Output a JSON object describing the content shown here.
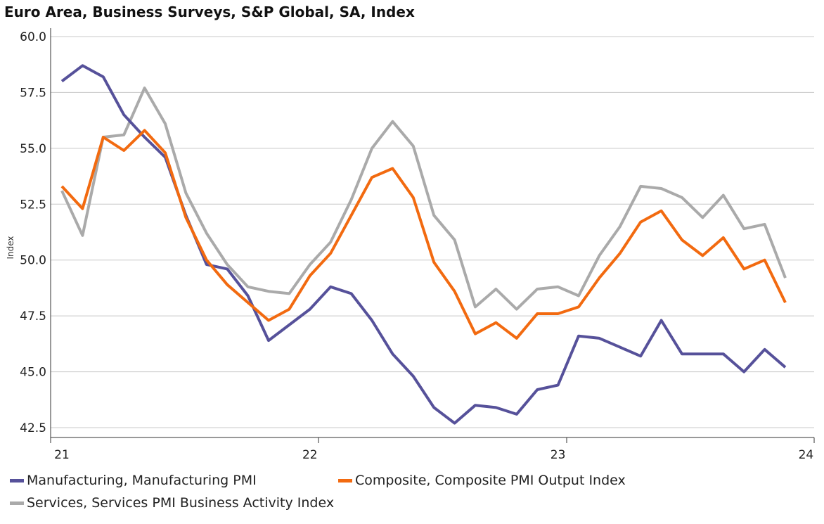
{
  "chart_data": {
    "type": "line",
    "title": "Euro Area, Business Surveys, S&P Global, SA, Index",
    "xlabel": "",
    "ylabel": "Index",
    "ylim": [
      42.0,
      60.5
    ],
    "yticks": [
      "60.0",
      "57.5",
      "55.0",
      "52.5",
      "50.0",
      "47.5",
      "45.0",
      "42.5"
    ],
    "ytick_values": [
      60.0,
      57.5,
      55.0,
      52.5,
      50.0,
      47.5,
      45.0,
      42.5
    ],
    "x_start": "2021-01",
    "x_tick_labels": [
      "21",
      "22",
      "23",
      "24"
    ],
    "x_tick_indices": [
      0,
      12,
      24,
      36
    ],
    "n_points": 36,
    "grid": true,
    "legend_position": "bottom",
    "series": [
      {
        "name": "Manufacturing, Manufacturing PMI",
        "color": "#56519a",
        "values": [
          58.0,
          58.7,
          58.2,
          56.5,
          55.5,
          54.6,
          52.0,
          49.8,
          49.6,
          48.4,
          46.4,
          47.1,
          47.8,
          48.8,
          48.5,
          47.3,
          45.8,
          44.8,
          43.4,
          42.7,
          43.5,
          43.4,
          43.1,
          44.2,
          44.4,
          46.6,
          46.5,
          46.1,
          45.7,
          47.3,
          45.8,
          45.8,
          45.8,
          45.0,
          46.0,
          45.2
        ]
      },
      {
        "name": "Composite, Composite PMI Output Index",
        "color": "#f26a10",
        "values": [
          53.3,
          52.3,
          55.5,
          54.9,
          55.8,
          54.8,
          51.9,
          50.0,
          48.9,
          48.1,
          47.3,
          47.8,
          49.3,
          50.3,
          52.0,
          53.7,
          54.1,
          52.8,
          49.9,
          48.6,
          46.7,
          47.2,
          46.5,
          47.6,
          47.6,
          47.9,
          49.2,
          50.3,
          51.7,
          52.2,
          50.9,
          50.2,
          51.0,
          49.6,
          50.0,
          48.1
        ]
      },
      {
        "name": "Services, Services PMI Business Activity Index",
        "color": "#aaaaaa",
        "values": [
          53.1,
          51.1,
          55.5,
          55.6,
          57.7,
          56.1,
          53.0,
          51.2,
          49.8,
          48.8,
          48.6,
          48.5,
          49.8,
          50.8,
          52.7,
          55.0,
          56.2,
          55.1,
          52.0,
          50.9,
          47.9,
          48.7,
          47.8,
          48.7,
          48.8,
          48.4,
          50.2,
          51.5,
          53.3,
          53.2,
          52.8,
          51.9,
          52.9,
          51.4,
          51.6,
          49.2
        ]
      }
    ]
  }
}
